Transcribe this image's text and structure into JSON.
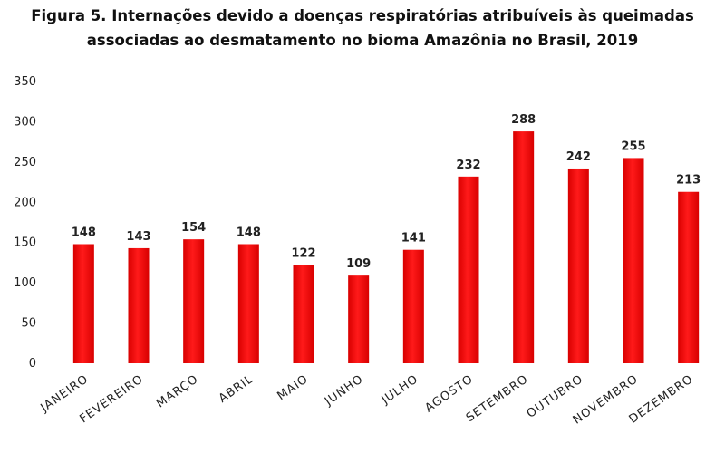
{
  "chart_data": {
    "type": "bar",
    "title_lines": [
      "Figura 5. Internações devido a doenças respiratórias atribuíveis às queimadas",
      "associadas ao desmatamento no bioma Amazônia no Brasil, 2019"
    ],
    "categories": [
      "JANEIRO",
      "FEVEREIRO",
      "MARÇO",
      "ABRIL",
      "MAIO",
      "JUNHO",
      "JULHO",
      "AGOSTO",
      "SETEMBRO",
      "OUTUBRO",
      "NOVEMBRO",
      "DEZEMBRO"
    ],
    "values": [
      148,
      143,
      154,
      148,
      122,
      109,
      141,
      232,
      288,
      242,
      255,
      213
    ],
    "ylim": [
      0,
      350
    ],
    "yticks": [
      0,
      50,
      100,
      150,
      200,
      250,
      300,
      350
    ],
    "grid": false,
    "legend": "none",
    "bar_color": "#ff0000",
    "bar_gradient_edge": "#e00000"
  }
}
